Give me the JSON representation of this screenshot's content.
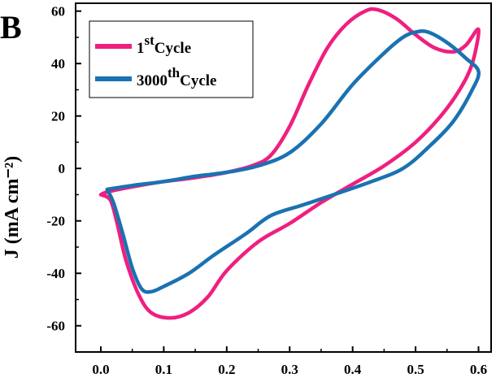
{
  "chart_data": {
    "type": "line",
    "panel_label": "B",
    "ylabel": "J (mA cm⁻²)",
    "xlabel": "",
    "xlim": [
      -0.04,
      0.62
    ],
    "ylim": [
      -70,
      63
    ],
    "x_ticks": [
      "0.0",
      "0.1",
      "0.2",
      "0.3",
      "0.4",
      "0.5",
      "0.6"
    ],
    "y_ticks": [
      "60",
      "40",
      "20",
      "0",
      "-20",
      "-40",
      "-60"
    ],
    "grid": false,
    "legend_position": "top-left",
    "series": [
      {
        "name_base": "1",
        "name_sup": "st",
        "name_tail": "Cycle",
        "color": "#ef1f7f",
        "points": [
          [
            0.0,
            -10
          ],
          [
            0.01,
            -9
          ],
          [
            0.05,
            -7
          ],
          [
            0.1,
            -5
          ],
          [
            0.15,
            -3.5
          ],
          [
            0.2,
            -1.5
          ],
          [
            0.24,
            1
          ],
          [
            0.27,
            5
          ],
          [
            0.3,
            16
          ],
          [
            0.33,
            32
          ],
          [
            0.36,
            46
          ],
          [
            0.39,
            55
          ],
          [
            0.42,
            60
          ],
          [
            0.44,
            60.5
          ],
          [
            0.47,
            57
          ],
          [
            0.5,
            51
          ],
          [
            0.53,
            46
          ],
          [
            0.56,
            44.5
          ],
          [
            0.58,
            47
          ],
          [
            0.6,
            53
          ],
          [
            0.59,
            40
          ],
          [
            0.57,
            30
          ],
          [
            0.54,
            20
          ],
          [
            0.5,
            10
          ],
          [
            0.45,
            1
          ],
          [
            0.4,
            -6
          ],
          [
            0.35,
            -13
          ],
          [
            0.3,
            -21
          ],
          [
            0.25,
            -28
          ],
          [
            0.2,
            -39
          ],
          [
            0.17,
            -49
          ],
          [
            0.14,
            -55
          ],
          [
            0.11,
            -57
          ],
          [
            0.08,
            -55
          ],
          [
            0.06,
            -48
          ],
          [
            0.04,
            -35
          ],
          [
            0.025,
            -20
          ],
          [
            0.015,
            -12
          ],
          [
            0.0,
            -10
          ]
        ]
      },
      {
        "name_base": "3000",
        "name_sup": "th",
        "name_tail": "Cycle",
        "color": "#1a72b2",
        "points": [
          [
            0.01,
            -8
          ],
          [
            0.05,
            -6.5
          ],
          [
            0.1,
            -5
          ],
          [
            0.15,
            -3
          ],
          [
            0.2,
            -1.5
          ],
          [
            0.25,
            1
          ],
          [
            0.3,
            6
          ],
          [
            0.35,
            17
          ],
          [
            0.4,
            32
          ],
          [
            0.45,
            44
          ],
          [
            0.48,
            50
          ],
          [
            0.5,
            52
          ],
          [
            0.52,
            52
          ],
          [
            0.55,
            48
          ],
          [
            0.58,
            42
          ],
          [
            0.6,
            37
          ],
          [
            0.59,
            30
          ],
          [
            0.56,
            18
          ],
          [
            0.52,
            8
          ],
          [
            0.48,
            0
          ],
          [
            0.43,
            -5
          ],
          [
            0.37,
            -10
          ],
          [
            0.32,
            -14
          ],
          [
            0.27,
            -18
          ],
          [
            0.23,
            -25
          ],
          [
            0.18,
            -33
          ],
          [
            0.14,
            -40
          ],
          [
            0.1,
            -45
          ],
          [
            0.08,
            -47
          ],
          [
            0.065,
            -46
          ],
          [
            0.05,
            -38
          ],
          [
            0.035,
            -25
          ],
          [
            0.02,
            -13
          ],
          [
            0.01,
            -8
          ]
        ]
      }
    ]
  }
}
